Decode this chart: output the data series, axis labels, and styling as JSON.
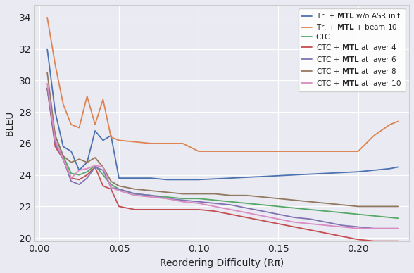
{
  "title": "",
  "xlabel": "Reordering Difficulty (Rπ)",
  "ylabel": "BLEU",
  "xlim": [
    -0.003,
    0.232
  ],
  "ylim": [
    19.8,
    34.8
  ],
  "yticks": [
    20,
    22,
    24,
    26,
    28,
    30,
    32,
    34
  ],
  "xticks": [
    0.0,
    0.05,
    0.1,
    0.15,
    0.2
  ],
  "background_color": "#eaeaf2",
  "grid_color": "#ffffff",
  "series": [
    {
      "label": "Tr. + MTL w/o ASR init.",
      "color": "#4c72b0",
      "x": [
        0.005,
        0.01,
        0.015,
        0.02,
        0.025,
        0.03,
        0.035,
        0.04,
        0.045,
        0.05,
        0.06,
        0.07,
        0.08,
        0.09,
        0.1,
        0.11,
        0.12,
        0.13,
        0.14,
        0.15,
        0.16,
        0.17,
        0.18,
        0.19,
        0.2,
        0.21,
        0.22,
        0.225
      ],
      "y": [
        32.0,
        28.0,
        25.8,
        25.5,
        24.3,
        24.8,
        26.8,
        26.2,
        26.5,
        23.8,
        23.8,
        23.8,
        23.7,
        23.7,
        23.7,
        23.75,
        23.8,
        23.85,
        23.9,
        23.95,
        24.0,
        24.05,
        24.1,
        24.15,
        24.2,
        24.3,
        24.4,
        24.5
      ]
    },
    {
      "label": "Tr. + MTL + beam 10",
      "color": "#dd8452",
      "x": [
        0.005,
        0.01,
        0.015,
        0.02,
        0.025,
        0.03,
        0.035,
        0.04,
        0.045,
        0.05,
        0.06,
        0.07,
        0.08,
        0.09,
        0.1,
        0.11,
        0.13,
        0.15,
        0.2,
        0.21,
        0.22,
        0.225
      ],
      "y": [
        34.0,
        31.0,
        28.5,
        27.2,
        27.0,
        29.0,
        27.2,
        28.8,
        26.4,
        26.2,
        26.1,
        26.0,
        26.0,
        26.0,
        25.5,
        25.5,
        25.5,
        25.5,
        25.5,
        26.5,
        27.2,
        27.4
      ]
    },
    {
      "label": "CTC",
      "color": "#55a868",
      "x": [
        0.005,
        0.01,
        0.015,
        0.02,
        0.025,
        0.03,
        0.035,
        0.04,
        0.045,
        0.05,
        0.06,
        0.07,
        0.08,
        0.09,
        0.1,
        0.11,
        0.12,
        0.13,
        0.14,
        0.15,
        0.16,
        0.17,
        0.18,
        0.19,
        0.2,
        0.21,
        0.22,
        0.225
      ],
      "y": [
        29.5,
        26.5,
        25.2,
        24.1,
        24.0,
        24.2,
        24.6,
        24.0,
        23.4,
        23.1,
        22.8,
        22.7,
        22.6,
        22.5,
        22.5,
        22.4,
        22.3,
        22.2,
        22.1,
        22.0,
        21.9,
        21.8,
        21.7,
        21.6,
        21.5,
        21.4,
        21.3,
        21.25
      ]
    },
    {
      "label": "CTC + MTL at layer 4",
      "color": "#c44e52",
      "x": [
        0.005,
        0.01,
        0.015,
        0.02,
        0.025,
        0.03,
        0.035,
        0.04,
        0.045,
        0.05,
        0.06,
        0.07,
        0.08,
        0.09,
        0.1,
        0.11,
        0.12,
        0.13,
        0.14,
        0.15,
        0.16,
        0.17,
        0.18,
        0.19,
        0.2,
        0.21,
        0.22,
        0.225
      ],
      "y": [
        29.5,
        25.8,
        25.0,
        23.8,
        23.7,
        24.0,
        24.5,
        23.3,
        23.1,
        22.0,
        21.8,
        21.8,
        21.8,
        21.8,
        21.8,
        21.7,
        21.5,
        21.3,
        21.1,
        20.9,
        20.7,
        20.5,
        20.3,
        20.1,
        19.9,
        19.8,
        19.8,
        19.8
      ]
    },
    {
      "label": "CTC + MTL at layer 6",
      "color": "#8172b2",
      "x": [
        0.005,
        0.01,
        0.015,
        0.02,
        0.025,
        0.03,
        0.035,
        0.04,
        0.045,
        0.05,
        0.06,
        0.07,
        0.08,
        0.09,
        0.1,
        0.11,
        0.12,
        0.13,
        0.14,
        0.15,
        0.16,
        0.17,
        0.18,
        0.19,
        0.2,
        0.21,
        0.22,
        0.225
      ],
      "y": [
        29.5,
        26.0,
        25.0,
        23.6,
        23.4,
        23.8,
        24.5,
        24.3,
        23.2,
        23.1,
        22.8,
        22.7,
        22.5,
        22.4,
        22.3,
        22.2,
        22.1,
        21.9,
        21.7,
        21.5,
        21.3,
        21.2,
        21.0,
        20.8,
        20.7,
        20.6,
        20.6,
        20.6
      ]
    },
    {
      "label": "CTC + MTL at layer 8",
      "color": "#937860",
      "x": [
        0.005,
        0.01,
        0.015,
        0.02,
        0.025,
        0.03,
        0.035,
        0.04,
        0.045,
        0.05,
        0.06,
        0.07,
        0.08,
        0.09,
        0.1,
        0.11,
        0.12,
        0.13,
        0.14,
        0.15,
        0.16,
        0.17,
        0.18,
        0.19,
        0.2,
        0.21,
        0.22,
        0.225
      ],
      "y": [
        30.5,
        26.5,
        25.2,
        24.8,
        25.0,
        24.8,
        25.1,
        24.5,
        23.6,
        23.3,
        23.1,
        23.0,
        22.9,
        22.8,
        22.8,
        22.8,
        22.7,
        22.7,
        22.6,
        22.5,
        22.4,
        22.3,
        22.2,
        22.1,
        22.0,
        22.0,
        22.0,
        22.0
      ]
    },
    {
      "label": "CTC + MTL at layer 10",
      "color": "#da8bc3",
      "x": [
        0.005,
        0.01,
        0.015,
        0.02,
        0.025,
        0.03,
        0.035,
        0.04,
        0.045,
        0.05,
        0.06,
        0.07,
        0.08,
        0.09,
        0.1,
        0.11,
        0.12,
        0.13,
        0.14,
        0.15,
        0.16,
        0.17,
        0.18,
        0.19,
        0.2,
        0.21,
        0.22,
        0.225
      ],
      "y": [
        29.8,
        26.2,
        25.0,
        23.8,
        24.3,
        24.4,
        24.6,
        24.5,
        23.2,
        23.0,
        22.7,
        22.6,
        22.5,
        22.3,
        22.2,
        22.0,
        21.8,
        21.6,
        21.4,
        21.2,
        21.0,
        20.9,
        20.8,
        20.7,
        20.6,
        20.6,
        20.6,
        20.6
      ]
    }
  ],
  "legend_labels_rich": [
    [
      "Tr. + ",
      "MTL",
      " w/o ASR init."
    ],
    [
      "Tr. + ",
      "MTL",
      " + beam 10"
    ],
    [
      "CTC"
    ],
    [
      "CTC + ",
      "MTL",
      " at layer 4"
    ],
    [
      "CTC + ",
      "MTL",
      " at layer 6"
    ],
    [
      "CTC + ",
      "MTL",
      " at layer 8"
    ],
    [
      "CTC + ",
      "MTL",
      " at layer 10"
    ]
  ]
}
